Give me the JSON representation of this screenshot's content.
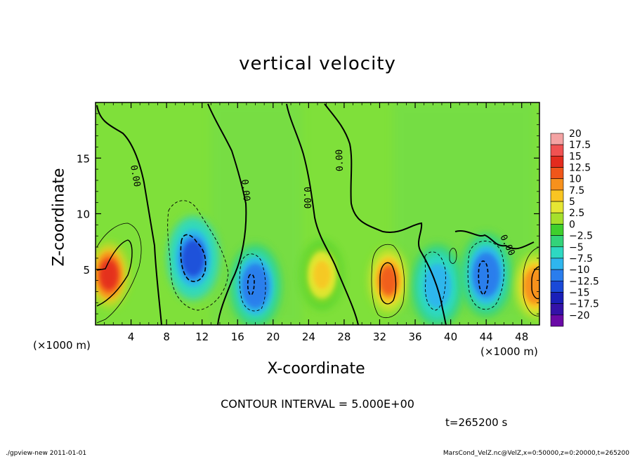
{
  "chart_data": {
    "type": "heatmap",
    "title": "vertical velocity",
    "xlabel": "X-coordinate",
    "ylabel": "Z-coordinate",
    "x_unit": "(×1000 m)",
    "xlim": [
      0,
      50
    ],
    "ylim": [
      0,
      20
    ],
    "x_ticks": [
      4,
      8,
      12,
      16,
      20,
      24,
      28,
      32,
      36,
      40,
      44,
      48
    ],
    "y_ticks": [
      5,
      10,
      15
    ],
    "contour_interval_text": "CONTOUR INTERVAL = 5.000E+00",
    "contour_label": "0.00",
    "time_text": "t=265200 s",
    "colorbar": {
      "levels": [
        20,
        17.5,
        15,
        12.5,
        10,
        7.5,
        5,
        2.5,
        0,
        -2.5,
        -5,
        -7.5,
        -10,
        -12.5,
        -15,
        -17.5,
        -20
      ],
      "level_labels": [
        "20",
        "17.5",
        "15",
        "12.5",
        "10",
        "7.5",
        "5",
        "2.5",
        "0",
        "−2.5",
        "−5",
        "−7.5",
        "−10",
        "−12.5",
        "−15",
        "−17.5",
        "−20"
      ],
      "colors": [
        "#f4a3a3",
        "#f05252",
        "#e32c1e",
        "#f0561a",
        "#f7911c",
        "#f9c522",
        "#e6e633",
        "#a6e02b",
        "#3fcf2d",
        "#33d37a",
        "#2ed8c2",
        "#2fb6ee",
        "#2a7ded",
        "#1a49d8",
        "#1a1fb8",
        "#3412a8",
        "#6a0aa6"
      ]
    },
    "features": [
      {
        "kind": "updraft",
        "x": 1.5,
        "z": 4.5,
        "w": 17
      },
      {
        "kind": "downdraft",
        "x": 11,
        "z": 6,
        "w": -11
      },
      {
        "kind": "downdraft",
        "x": 18,
        "z": 3.5,
        "w": -9
      },
      {
        "kind": "updraft",
        "x": 25.5,
        "z": 4.5,
        "w": 8
      },
      {
        "kind": "updraft",
        "x": 33,
        "z": 4,
        "w": 14
      },
      {
        "kind": "downdraft",
        "x": 38.5,
        "z": 3.5,
        "w": -6
      },
      {
        "kind": "downdraft",
        "x": 44,
        "z": 4.5,
        "w": -10
      },
      {
        "kind": "updraft",
        "x": 49.5,
        "z": 3.5,
        "w": 12
      }
    ]
  },
  "footer": {
    "left": "./gpview-new   2011-01-01",
    "right": "MarsCond_VelZ.nc@VelZ,x=0:50000,z=0:20000,t=265200"
  }
}
